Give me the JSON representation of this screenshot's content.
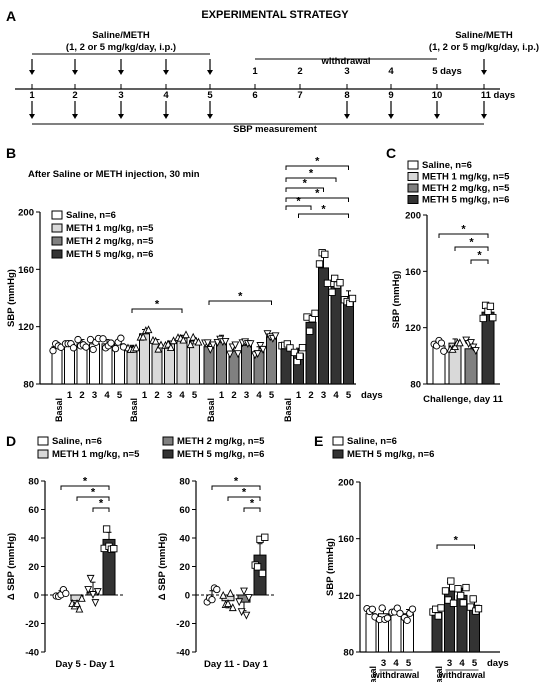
{
  "figure": {
    "panel_A": {
      "letter": "A",
      "title": "EXPERIMENTAL STRATEGY",
      "left_treatment": [
        "Saline/METH",
        "(1, 2 or 5 mg/kg/day, i.p.)"
      ],
      "right_treatment": [
        "Saline/METH",
        "(1, 2 or 5 mg/kg/day, i.p.)"
      ],
      "withdrawal_label": "withdrawal",
      "withdrawal_days": [
        "1",
        "2",
        "3",
        "4",
        "5 days"
      ],
      "timeline_days": [
        "1",
        "2",
        "3",
        "4",
        "5",
        "6",
        "7",
        "8",
        "9",
        "10",
        "11 days"
      ],
      "sbp_label": "SBP measurement"
    },
    "panel_B": {
      "letter": "B",
      "subtitle": "After Saline or METH injection, 30 min"
    },
    "panel_C": {
      "letter": "C"
    },
    "panel_D": {
      "letter": "D"
    },
    "panel_E": {
      "letter": "E"
    },
    "colors": {
      "saline": "#ffffff",
      "meth1": "#d9d9d9",
      "meth2": "#808080",
      "meth5": "#333333",
      "stroke": "#000000"
    }
  },
  "chart_data": [
    {
      "panel": "B",
      "type": "bar",
      "title": "After Saline or METH injection, 30 min",
      "ylabel": "SBP (mmHg)",
      "ylim": [
        80,
        200
      ],
      "yticks": [
        80,
        120,
        160,
        200
      ],
      "x_suffix": "days",
      "categories": [
        "Basal",
        "1",
        "2",
        "3",
        "4",
        "5"
      ],
      "series": [
        {
          "name": "Saline, n=6",
          "values": [
            106,
            108,
            108,
            108,
            108,
            108
          ],
          "errors": [
            3,
            2,
            3,
            3,
            3,
            3
          ]
        },
        {
          "name": "METH 1 mg/kg, n=5",
          "values": [
            105,
            115,
            108,
            108,
            112,
            110
          ],
          "errors": [
            2,
            3,
            3,
            2,
            2,
            2
          ]
        },
        {
          "name": "METH 2 mg/kg, n=5",
          "values": [
            106,
            110,
            103,
            107,
            103,
            113
          ],
          "errors": [
            2,
            4,
            3,
            3,
            3,
            2
          ]
        },
        {
          "name": "METH 5 mg/kg, n=6",
          "values": [
            106,
            101,
            123,
            161,
            148,
            141
          ],
          "errors": [
            2,
            4,
            5,
            8,
            4,
            4
          ]
        }
      ],
      "significance": [
        "*",
        "*",
        "*",
        "*",
        "*",
        "*",
        "*",
        "*"
      ],
      "grid": false,
      "legend": "top-left"
    },
    {
      "panel": "C",
      "type": "bar",
      "xlabel": "Challenge, day 11",
      "ylabel": "SBP (mmHg)",
      "ylim": [
        80,
        200
      ],
      "yticks": [
        80,
        120,
        160,
        200
      ],
      "series": [
        {
          "name": "Saline, n=6",
          "value": 107,
          "error": 3
        },
        {
          "name": "METH 1 mg/kg, n=5",
          "value": 109,
          "error": 3
        },
        {
          "name": "METH 2 mg/kg, n=5",
          "value": 105,
          "error": 4
        },
        {
          "name": "METH 5 mg/kg, n=6",
          "value": 131,
          "error": 5
        }
      ],
      "significance": [
        "*",
        "*",
        "*"
      ],
      "legend": "top"
    },
    [
      {
        "panel": "D-left",
        "type": "bar",
        "xlabel": "Day 5 - Day 1",
        "ylabel": "Δ SBP (mmHg)",
        "ylim": [
          -40,
          80
        ],
        "yticks": [
          -40,
          -20,
          0,
          20,
          40,
          60,
          80
        ],
        "series": [
          {
            "name": "Saline, n=6",
            "value": 0,
            "error": 3
          },
          {
            "name": "METH 1 mg/kg, n=5",
            "value": -4,
            "error": 4
          },
          {
            "name": "METH 2 mg/kg, n=5",
            "value": 2,
            "error": 7
          },
          {
            "name": "METH 5 mg/kg, n=6",
            "value": 39,
            "error": 5
          }
        ],
        "significance": [
          "*",
          "*",
          "*"
        ]
      },
      {
        "panel": "D-right",
        "type": "bar",
        "xlabel": "Day 11 - Day 1",
        "ylabel": "Δ SBP (mmHg)",
        "ylim": [
          -40,
          80
        ],
        "yticks": [
          -40,
          -20,
          0,
          20,
          40,
          60,
          80
        ],
        "series": [
          {
            "name": "Saline, n=6",
            "value": 0,
            "error": 3
          },
          {
            "name": "METH 1 mg/kg, n=5",
            "value": -4,
            "error": 5
          },
          {
            "name": "METH 2 mg/kg, n=5",
            "value": -5,
            "error": 6
          },
          {
            "name": "METH 5 mg/kg, n=6",
            "value": 28,
            "error": 8
          }
        ],
        "significance": [
          "*",
          "*",
          "*"
        ]
      }
    ],
    {
      "panel": "E",
      "type": "bar",
      "ylabel": "SBP (mmHg)",
      "ylim": [
        80,
        200
      ],
      "yticks": [
        80,
        120,
        160,
        200
      ],
      "x_suffix": "days",
      "x_sublabel": "withdrawal",
      "categories": [
        "Basal",
        "3",
        "4",
        "5"
      ],
      "series": [
        {
          "name": "Saline, n=6",
          "values": [
            107,
            107,
            109,
            107
          ],
          "errors": [
            3,
            3,
            2,
            3
          ]
        },
        {
          "name": "METH 5 mg/kg, n=6",
          "values": [
            108,
            123,
            120,
            113
          ],
          "errors": [
            2,
            6,
            5,
            3
          ]
        }
      ],
      "significance": [
        "*"
      ],
      "legend": "top"
    }
  ]
}
